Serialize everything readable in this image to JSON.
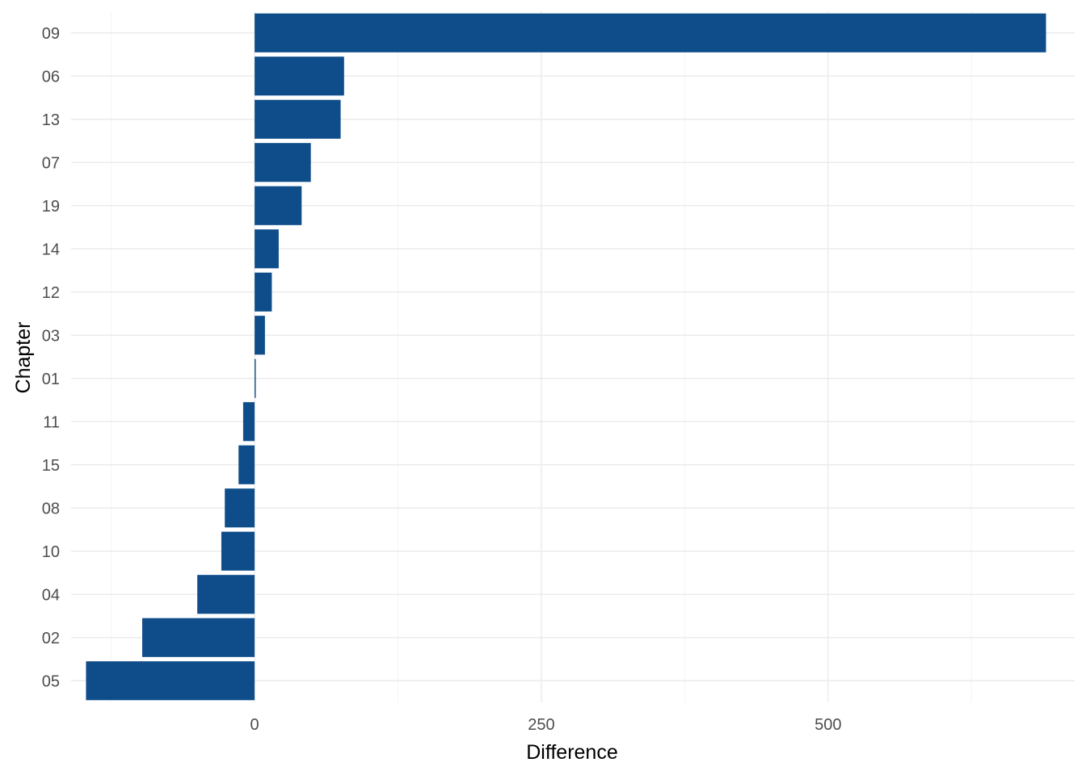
{
  "chart_data": {
    "type": "bar",
    "orientation": "horizontal",
    "categories": [
      "09",
      "06",
      "13",
      "07",
      "19",
      "14",
      "12",
      "03",
      "01",
      "11",
      "15",
      "08",
      "10",
      "04",
      "02",
      "05"
    ],
    "values": [
      690,
      78,
      75,
      49,
      41,
      21,
      15,
      9,
      1,
      -10,
      -14,
      -26,
      -29,
      -50,
      -98,
      -147
    ],
    "xlabel": "Difference",
    "ylabel": "Chapter",
    "xlim": [
      -160,
      715
    ],
    "xticks": [
      0,
      250,
      500
    ],
    "x_minor_grid": [
      -125,
      125,
      375,
      625
    ],
    "grid": true,
    "legend": "none",
    "bar_color": "#0f4d8a"
  }
}
